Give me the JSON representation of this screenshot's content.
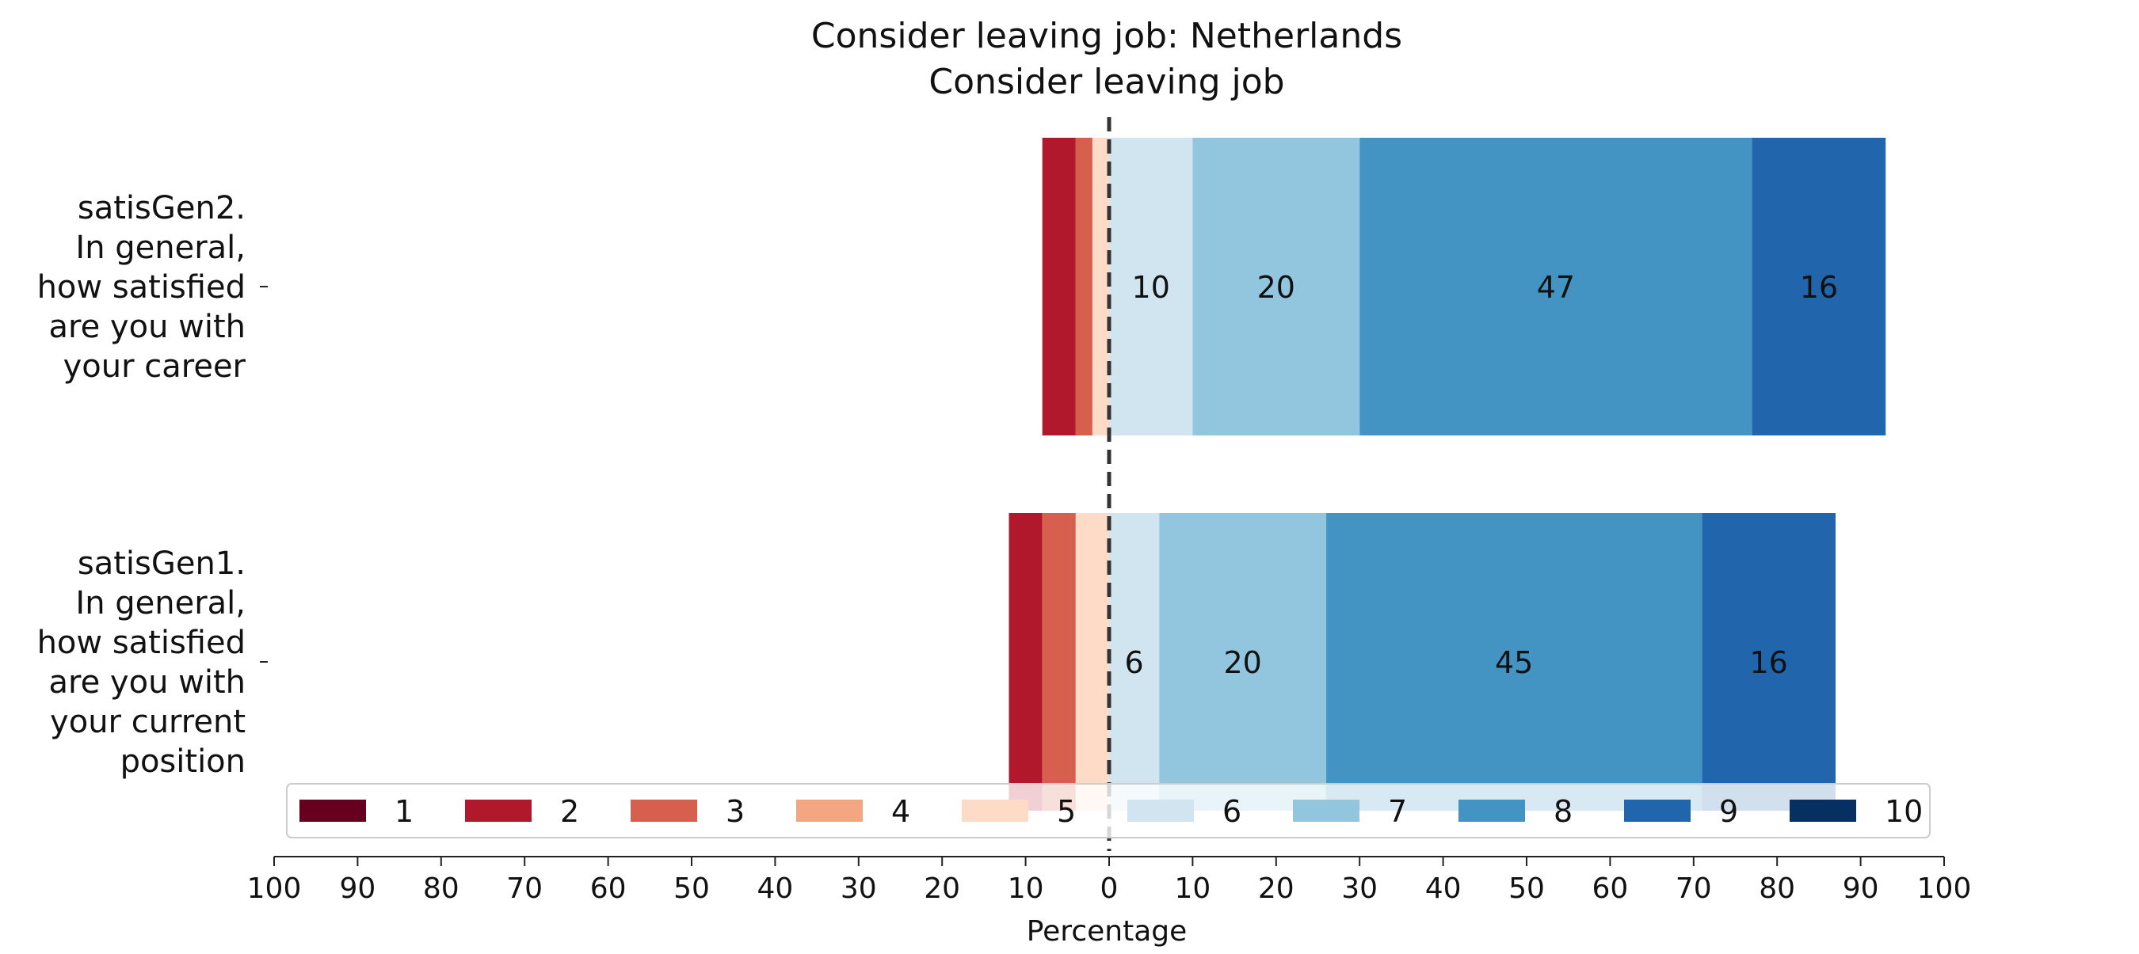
{
  "chart_data": {
    "type": "bar",
    "orientation": "horizontal",
    "stacked": "diverging",
    "title": "Consider leaving job: Netherlands",
    "subtitle": "Consider leaving job",
    "xlabel": "Percentage",
    "xlim": [
      -100,
      100
    ],
    "x_ticks": [
      "100",
      "90",
      "80",
      "70",
      "60",
      "50",
      "40",
      "30",
      "20",
      "10",
      "0",
      "10",
      "20",
      "30",
      "40",
      "50",
      "60",
      "70",
      "80",
      "90",
      "100"
    ],
    "center_line": 0,
    "categories": [
      "satisGen2.\nIn general,\nhow satisfied\nare you with\nyour career",
      "satisGen1.\nIn general,\nhow satisfied\nare you with\nyour current\nposition"
    ],
    "series": [
      {
        "name": "1",
        "color": "#67001f",
        "side": "left",
        "values": [
          0,
          0
        ]
      },
      {
        "name": "2",
        "color": "#b2182b",
        "side": "left",
        "values": [
          4,
          4
        ]
      },
      {
        "name": "3",
        "color": "#d6604d",
        "side": "left",
        "values": [
          2,
          4
        ]
      },
      {
        "name": "4",
        "color": "#f4a582",
        "side": "left",
        "values": [
          0,
          0
        ]
      },
      {
        "name": "5",
        "color": "#fddbc7",
        "side": "left",
        "values": [
          2,
          4
        ]
      },
      {
        "name": "6",
        "color": "#d1e5f0",
        "side": "right",
        "values": [
          10,
          6
        ]
      },
      {
        "name": "7",
        "color": "#92c5de",
        "side": "right",
        "values": [
          20,
          20
        ]
      },
      {
        "name": "8",
        "color": "#4393c3",
        "side": "right",
        "values": [
          47,
          45
        ]
      },
      {
        "name": "9",
        "color": "#2166ac",
        "side": "right",
        "values": [
          16,
          16
        ]
      },
      {
        "name": "10",
        "color": "#053061",
        "side": "right",
        "values": [
          0,
          0
        ]
      }
    ],
    "data_labels": [
      [
        "10",
        "20",
        "47",
        "16"
      ],
      [
        "6",
        "20",
        "45",
        "16"
      ]
    ],
    "legend_position": "bottom"
  }
}
